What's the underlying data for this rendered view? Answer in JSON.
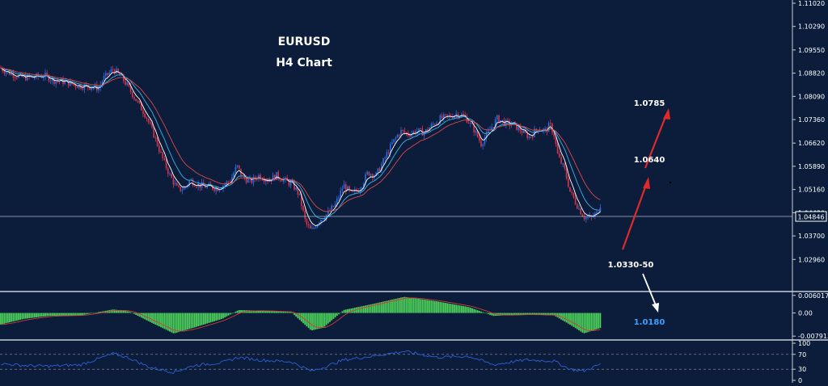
{
  "title": "EURUSD",
  "subtitle": "H4 Chart",
  "colors": {
    "background": "#0b1d3b",
    "bull": "#2f6bdc",
    "bear": "#d6344a",
    "ma_fast": "#ffffff",
    "ma_mid": "#38b6e8",
    "ma_slow": "#d94a4a",
    "macd_hist": "#4cd15a",
    "macd_signal": "#d33b3b",
    "rsi_line": "#2f5fd4",
    "arrow_up": "#e02a2a",
    "arrow_down": "#ffffff",
    "target_low_text": "#3ba0ff",
    "axis_text": "#ffffff"
  },
  "chart_data": [
    {
      "type": "candlestick",
      "title": "EURUSD",
      "subtitle": "H4 Chart",
      "ylim": [
        1.0223,
        1.1102
      ],
      "y_ticks": [
        "1.11020",
        "1.10290",
        "1.09550",
        "1.08820",
        "1.08090",
        "1.07360",
        "1.06620",
        "1.05890",
        "1.05160",
        "1.04430",
        "1.03700",
        "1.02960"
      ],
      "current_price": "1.04846",
      "price_path": [
        [
          0,
          1.09
        ],
        [
          8,
          1.0885
        ],
        [
          15,
          1.088
        ],
        [
          25,
          1.087
        ],
        [
          40,
          1.0868
        ],
        [
          55,
          1.0875
        ],
        [
          65,
          1.086
        ],
        [
          80,
          1.0855
        ],
        [
          95,
          1.0843
        ],
        [
          110,
          1.084
        ],
        [
          122,
          1.0835
        ],
        [
          128,
          1.0865
        ],
        [
          140,
          1.0895
        ],
        [
          150,
          1.087
        ],
        [
          158,
          1.084
        ],
        [
          170,
          1.079
        ],
        [
          180,
          1.075
        ],
        [
          190,
          1.069
        ],
        [
          200,
          1.062
        ],
        [
          210,
          1.056
        ],
        [
          220,
          1.0515
        ],
        [
          228,
          1.052
        ],
        [
          235,
          1.0545
        ],
        [
          245,
          1.053
        ],
        [
          255,
          1.0525
        ],
        [
          270,
          1.052
        ],
        [
          285,
          1.0545
        ],
        [
          293,
          1.059
        ],
        [
          300,
          1.0555
        ],
        [
          310,
          1.054
        ],
        [
          320,
          1.056
        ],
        [
          332,
          1.0545
        ],
        [
          342,
          1.056
        ],
        [
          352,
          1.0545
        ],
        [
          362,
          1.053
        ],
        [
          370,
          1.05
        ],
        [
          378,
          1.041
        ],
        [
          385,
          1.0385
        ],
        [
          395,
          1.042
        ],
        [
          405,
          1.044
        ],
        [
          415,
          1.047
        ],
        [
          425,
          1.053
        ],
        [
          435,
          1.05
        ],
        [
          445,
          1.052
        ],
        [
          455,
          1.057
        ],
        [
          465,
          1.056
        ],
        [
          475,
          1.061
        ],
        [
          485,
          1.066
        ],
        [
          495,
          1.07
        ],
        [
          505,
          1.069
        ],
        [
          515,
          1.07
        ],
        [
          525,
          1.0695
        ],
        [
          535,
          1.072
        ],
        [
          545,
          1.074
        ],
        [
          555,
          1.0745
        ],
        [
          565,
          1.0755
        ],
        [
          575,
          1.0745
        ],
        [
          585,
          1.071
        ],
        [
          595,
          1.066
        ],
        [
          605,
          1.07
        ],
        [
          615,
          1.074
        ],
        [
          625,
          1.0725
        ],
        [
          635,
          1.072
        ],
        [
          645,
          1.07
        ],
        [
          655,
          1.068
        ],
        [
          665,
          1.071
        ],
        [
          675,
          1.07
        ],
        [
          680,
          1.072
        ],
        [
          685,
          1.069
        ],
        [
          690,
          1.062
        ],
        [
          698,
          1.058
        ],
        [
          705,
          1.051
        ],
        [
          715,
          1.046
        ],
        [
          722,
          1.043
        ],
        [
          730,
          1.0425
        ],
        [
          738,
          1.044
        ],
        [
          744,
          1.048
        ]
      ],
      "annotations": [
        {
          "label": "1.0785",
          "kind": "target_up_2"
        },
        {
          "label": "1.0640",
          "kind": "target_up_1"
        },
        {
          "label": "1.0330-50",
          "kind": "support"
        },
        {
          "label": "1.0180",
          "kind": "target_down"
        }
      ]
    },
    {
      "type": "histogram",
      "name": "oscillator",
      "y_ticks": [
        "0.006017",
        "0.00",
        "-0.007913"
      ],
      "ylim": [
        -0.0084,
        0.0065
      ],
      "hist_path": [
        [
          0,
          -0.004
        ],
        [
          30,
          -0.002
        ],
        [
          60,
          -0.001
        ],
        [
          100,
          -0.0008
        ],
        [
          140,
          0.0012
        ],
        [
          160,
          0.0005
        ],
        [
          185,
          -0.003
        ],
        [
          215,
          -0.007
        ],
        [
          240,
          -0.005
        ],
        [
          275,
          -0.002
        ],
        [
          295,
          0.001
        ],
        [
          320,
          0.0008
        ],
        [
          360,
          0.0003
        ],
        [
          385,
          -0.006
        ],
        [
          400,
          -0.005
        ],
        [
          425,
          0.001
        ],
        [
          460,
          0.003
        ],
        [
          500,
          0.0055
        ],
        [
          540,
          0.004
        ],
        [
          580,
          0.002
        ],
        [
          610,
          -0.001
        ],
        [
          650,
          -0.0005
        ],
        [
          685,
          -0.0008
        ],
        [
          705,
          -0.004
        ],
        [
          722,
          -0.007
        ],
        [
          744,
          -0.005
        ]
      ]
    },
    {
      "type": "line",
      "name": "oscillator",
      "y_ticks": [
        "100",
        "70",
        "30",
        "0"
      ],
      "ylim": [
        0,
        100
      ],
      "levels": [
        70,
        30
      ],
      "rsi_path": [
        [
          0,
          45
        ],
        [
          30,
          40
        ],
        [
          60,
          38
        ],
        [
          100,
          42
        ],
        [
          140,
          72
        ],
        [
          160,
          60
        ],
        [
          185,
          35
        ],
        [
          215,
          22
        ],
        [
          240,
          40
        ],
        [
          275,
          48
        ],
        [
          295,
          62
        ],
        [
          320,
          55
        ],
        [
          360,
          50
        ],
        [
          385,
          25
        ],
        [
          400,
          35
        ],
        [
          425,
          55
        ],
        [
          460,
          65
        ],
        [
          500,
          78
        ],
        [
          540,
          62
        ],
        [
          580,
          65
        ],
        [
          610,
          42
        ],
        [
          650,
          55
        ],
        [
          685,
          52
        ],
        [
          705,
          30
        ],
        [
          722,
          25
        ],
        [
          744,
          45
        ]
      ]
    }
  ]
}
